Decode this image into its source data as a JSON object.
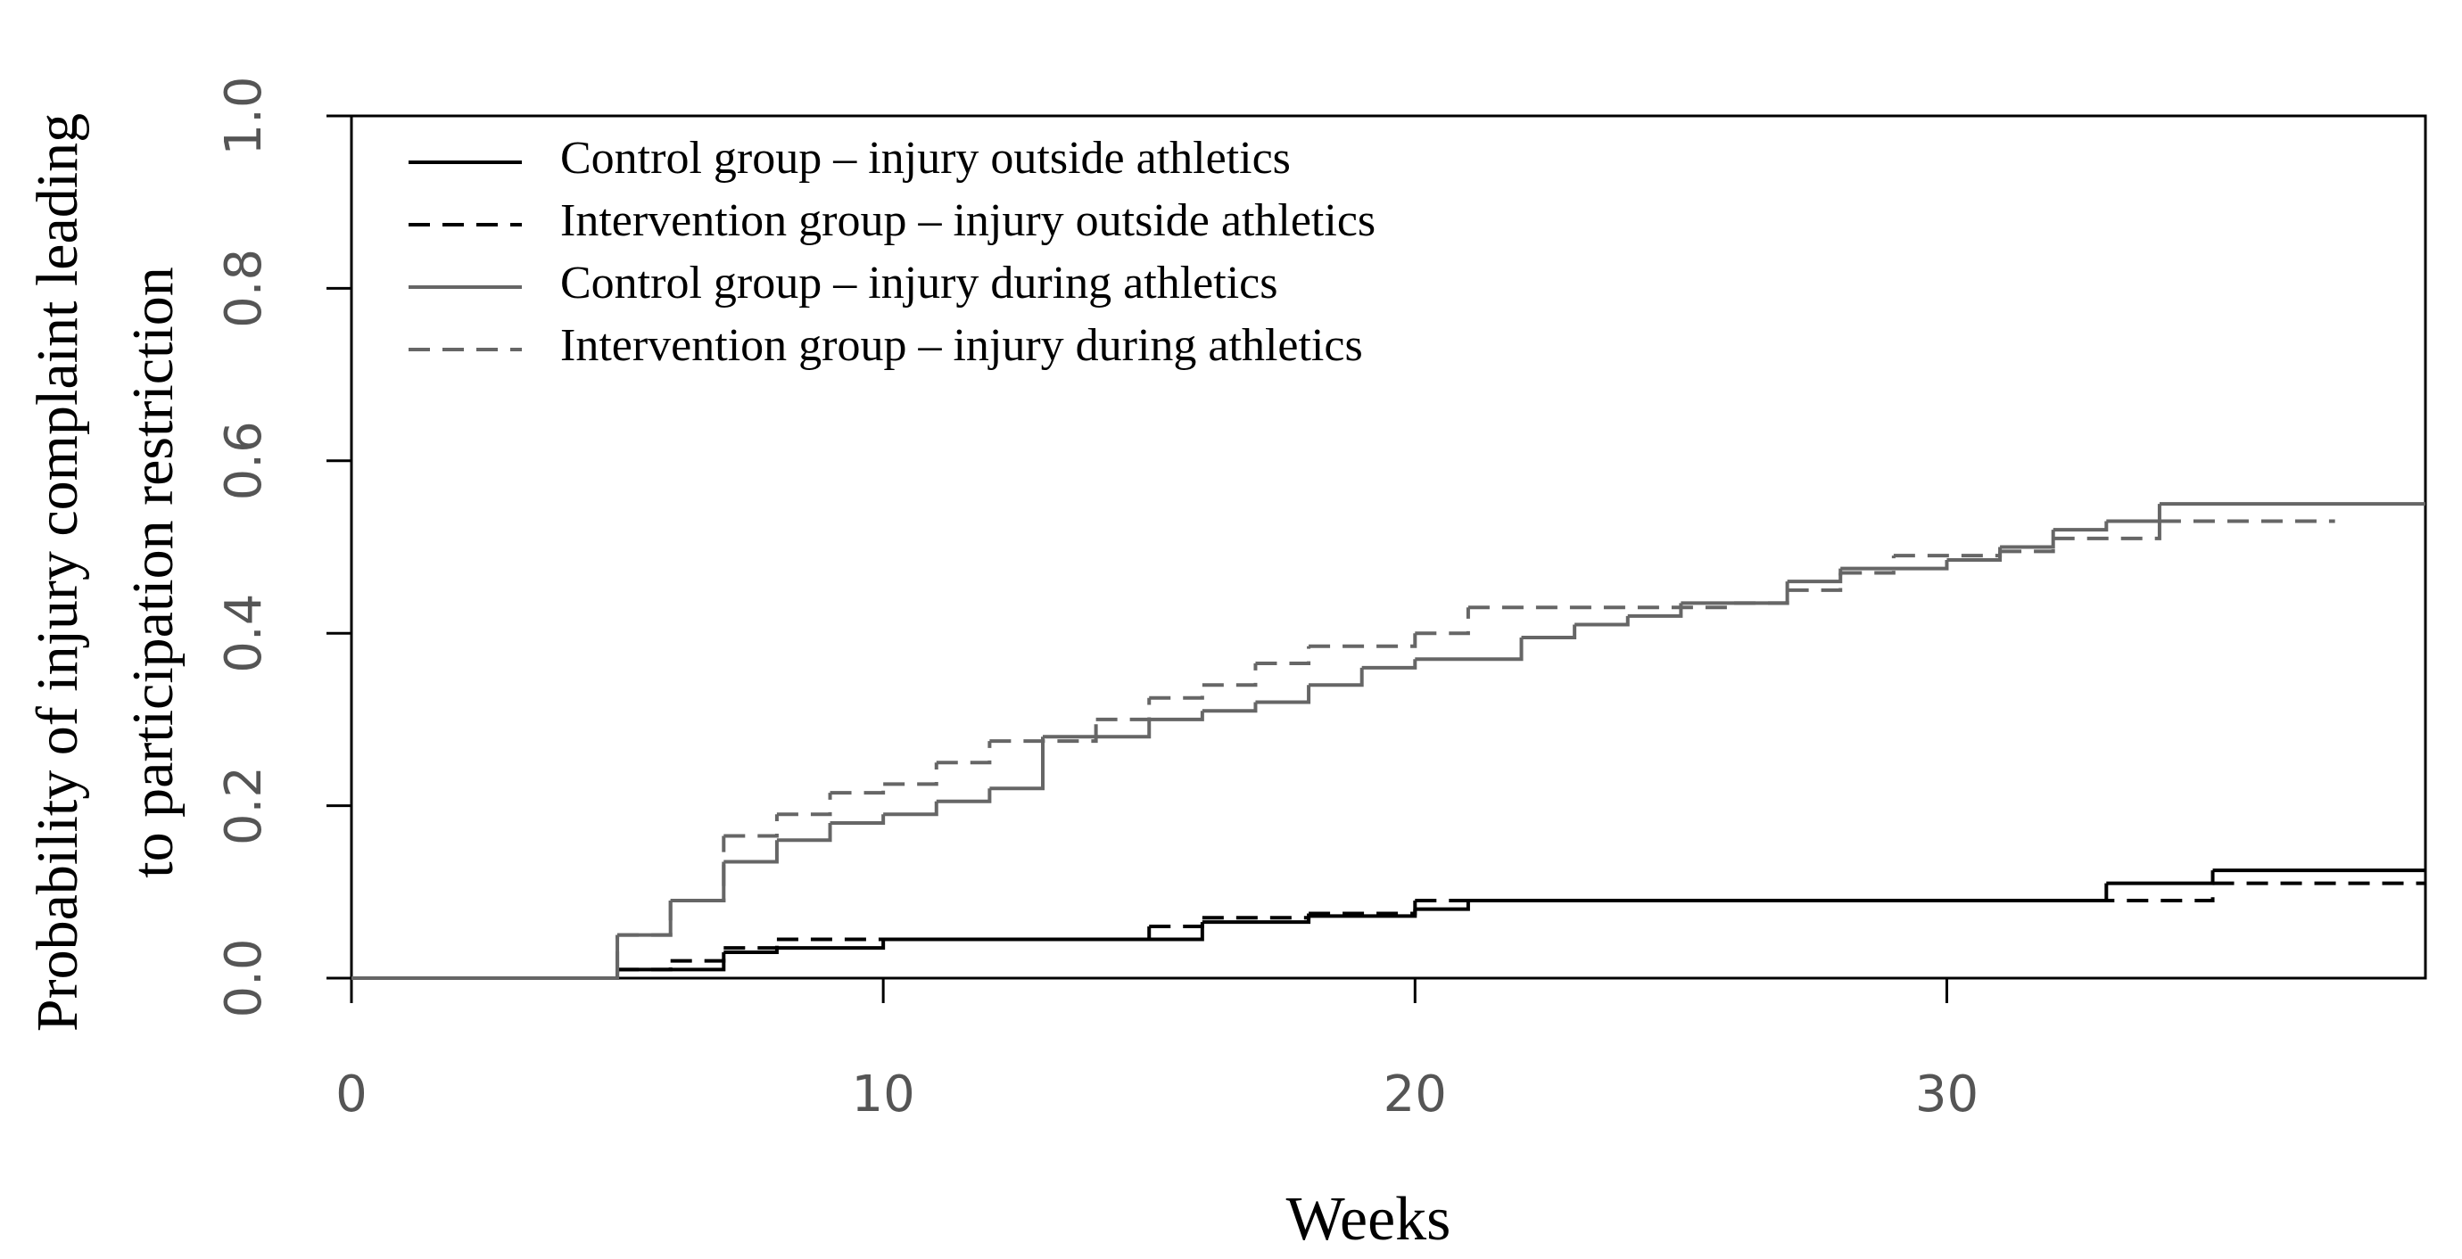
{
  "chart_data": {
    "type": "step",
    "xlabel": "Weeks",
    "ylabel": [
      "Probability of injury complaint leading",
      "to participation restriction"
    ],
    "xlim": [
      0,
      39
    ],
    "ylim": [
      0,
      1
    ],
    "xticks": [
      0,
      10,
      20,
      30
    ],
    "yticks": [
      {
        "value": 0,
        "label": "0.0"
      },
      {
        "value": 0.2,
        "label": "0.2"
      },
      {
        "value": 0.4,
        "label": "0.4"
      },
      {
        "value": 0.6,
        "label": "0.6"
      },
      {
        "value": 0.8,
        "label": "0.8"
      },
      {
        "value": 1,
        "label": "1.0"
      }
    ],
    "legend": "top-left",
    "series": [
      {
        "name": "Control group – injury outside athletics",
        "color": "#000000",
        "dashed": false,
        "x": [
          0,
          5,
          7,
          8,
          10,
          16,
          18,
          20,
          21,
          33,
          35,
          39
        ],
        "values": [
          0,
          0.01,
          0.03,
          0.035,
          0.045,
          0.065,
          0.072,
          0.08,
          0.09,
          0.11,
          0.125,
          0.125
        ]
      },
      {
        "name": "Intervention group – injury outside athletics",
        "color": "#000000",
        "dashed": true,
        "x": [
          0,
          5,
          6,
          7,
          8,
          15,
          16,
          18,
          20,
          35,
          39
        ],
        "values": [
          0,
          0.01,
          0.02,
          0.035,
          0.045,
          0.06,
          0.07,
          0.075,
          0.09,
          0.11,
          0.11
        ]
      },
      {
        "name": "Control group – injury during athletics",
        "color": "#666666",
        "dashed": false,
        "x": [
          0,
          5,
          6,
          7,
          8,
          9,
          10,
          11,
          12,
          13,
          15,
          16,
          17,
          18,
          19,
          20,
          22,
          23,
          24,
          25,
          27,
          28,
          30,
          31,
          32,
          33,
          34,
          39
        ],
        "values": [
          0,
          0.05,
          0.09,
          0.135,
          0.16,
          0.18,
          0.19,
          0.205,
          0.22,
          0.28,
          0.3,
          0.31,
          0.32,
          0.34,
          0.36,
          0.37,
          0.395,
          0.41,
          0.42,
          0.435,
          0.46,
          0.475,
          0.485,
          0.5,
          0.52,
          0.53,
          0.55,
          0.55
        ]
      },
      {
        "name": "Intervention group – injury during athletics",
        "color": "#666666",
        "dashed": true,
        "x": [
          0,
          5,
          6,
          7,
          8,
          9,
          10,
          11,
          12,
          14,
          15,
          16,
          17,
          18,
          20,
          21,
          26,
          27,
          28,
          29,
          31,
          32,
          34,
          37.3
        ],
        "values": [
          0,
          0.05,
          0.09,
          0.165,
          0.19,
          0.215,
          0.225,
          0.25,
          0.275,
          0.3,
          0.325,
          0.34,
          0.365,
          0.385,
          0.4,
          0.43,
          0.435,
          0.45,
          0.47,
          0.49,
          0.495,
          0.51,
          0.53,
          0.53
        ]
      }
    ]
  }
}
